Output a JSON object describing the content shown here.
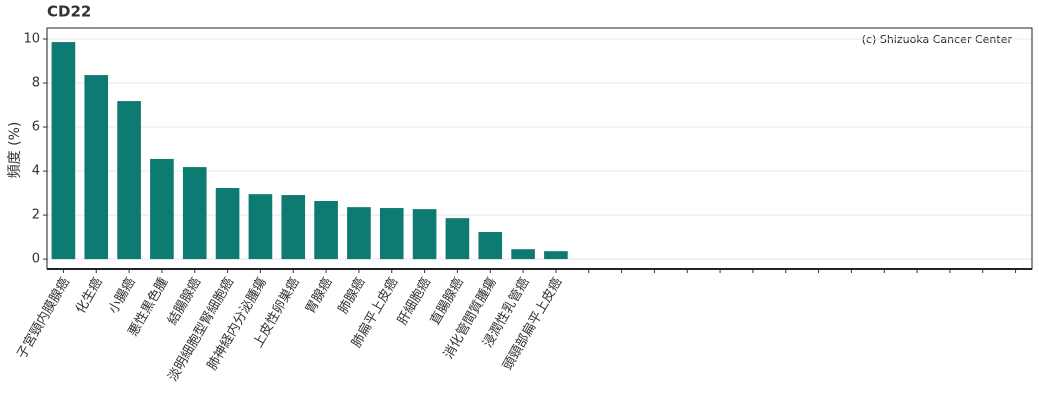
{
  "chart_data": {
    "type": "bar",
    "title": "CD22",
    "y_label": "頻度 (%)",
    "annotation": "(c) Shizuoka Cancer Center",
    "categories": [
      "子宮頸内膜腺癌",
      "化生癌",
      "小腸癌",
      "悪性黒色腫",
      "結腸腺癌",
      "淡明細胞型腎細胞癌",
      "肺神経内分泌腫瘍",
      "上皮性卵巣癌",
      "胃腺癌",
      "肺腺癌",
      "肺扁平上皮癌",
      "肝細胞癌",
      "直腸腺癌",
      "消化管間質腫瘍",
      "浸潤性乳管癌",
      "頭頸部扁平上皮癌",
      null,
      null,
      null,
      null,
      null,
      null,
      null,
      null,
      null,
      null,
      null,
      null,
      null,
      null
    ],
    "values": [
      9.86,
      8.36,
      7.18,
      4.55,
      4.18,
      3.23,
      2.95,
      2.91,
      2.64,
      2.36,
      2.32,
      2.27,
      1.86,
      1.23,
      0.45,
      0.36,
      null,
      null,
      null,
      null,
      null,
      null,
      null,
      null,
      null,
      null,
      null,
      null,
      null,
      null
    ],
    "color": "#0e7b73",
    "ylim": [
      -0.45,
      10.5
    ],
    "yticks": [
      0,
      2,
      4,
      6,
      8,
      10
    ],
    "grid": true
  }
}
